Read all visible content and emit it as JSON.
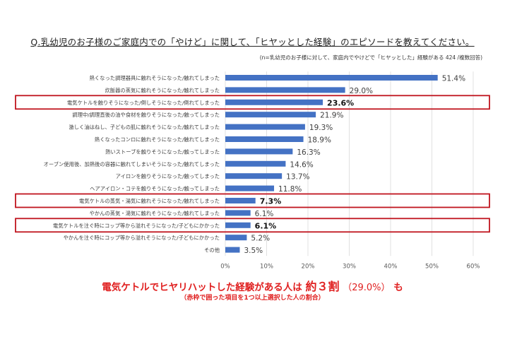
{
  "header": {
    "title": "Q.乳幼児のお子様のご家庭内での「やけど」に関して、「ヒヤッとした経験」のエピソードを教えてください。",
    "subtitle": "(n=乳幼児のお子様に対して、家庭内でやけどで「ヒヤッとした」経験がある 424 /複数回答)"
  },
  "chart_data": {
    "type": "bar",
    "orientation": "horizontal",
    "categories": [
      "熱くなった調理器具に触れそうになった/触れてしまった",
      "炊飯器の蒸気に触れそうになった/触れてしまった",
      "電気ケトルを触りそうになった/倒しそうになった/倒れてしまった",
      "調理中/調理直後の油や食材を触りそうになった/触ってしまった",
      "激しく油はねし、子どもの肌に触れそうになった/触れてしまった",
      "熱くなったコンロに触れそうになった/触れてしまった",
      "熱いストーブを触りそうになった/触ってしまった",
      "オーブン使用後、加熱後の容器に触れてしまいそうになった/触れてしまった",
      "アイロンを触りそうになった/触ってしまった",
      "ヘアアイロン・コテを触りそうになった/触ってしまった",
      "電気ケトルの蒸気・湯気に触れそうになった/触れてしまった",
      "やかんの蒸気・湯気に触れそうになった/触れてしまった",
      "電気ケトルを注ぐ時にコップ等から溢れそうになった/子どもにかかった",
      "やかんを注ぐ時にコップ等から溢れそうになった/子どもにかかった",
      "その他"
    ],
    "values": [
      51.4,
      29.0,
      23.6,
      21.9,
      19.3,
      18.9,
      16.3,
      14.6,
      13.7,
      11.8,
      7.3,
      6.1,
      6.1,
      5.2,
      3.5
    ],
    "value_labels": [
      "51.4%",
      "29.0%",
      "23.6%",
      "21.9%",
      "19.3%",
      "18.9%",
      "16.3%",
      "14.6%",
      "13.7%",
      "11.8%",
      "7.3%",
      "6.1%",
      "6.1%",
      "5.2%",
      "3.5%"
    ],
    "highlighted_indices": [
      2,
      10,
      12
    ],
    "xlim": [
      0,
      60
    ],
    "xticks": [
      0,
      10,
      20,
      30,
      40,
      50,
      60
    ],
    "xtick_labels": [
      "0%",
      "10%",
      "20%",
      "30%",
      "40%",
      "50%",
      "60%"
    ],
    "bar_color": "#4472c4",
    "highlight_color": "#c0141e",
    "grid": true
  },
  "footer": {
    "main_prefix": "電気ケトルでヒヤリハットした経験がある人は",
    "main_big": "約３割",
    "main_pct": "（29.0%）",
    "main_suffix": "も",
    "note": "（赤枠で囲った項目を1つ以上選択した人の割合）"
  }
}
